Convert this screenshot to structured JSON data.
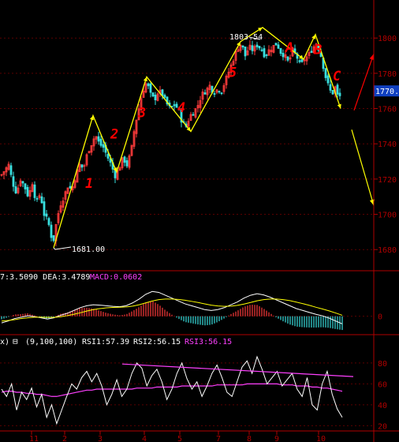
{
  "colors": {
    "background": "#000000",
    "axis": "#b00000",
    "grid": "#5a0000",
    "up": "#ff3b3b",
    "down": "#39e0e0",
    "white_line": "#ffffff",
    "yellow": "#ffff00",
    "magenta": "#ff40ff",
    "red_mark": "#ff0000",
    "price_tag": "#1040c0",
    "annotation_text": "#ffffff"
  },
  "header_macd": {
    "text_left": "7:3.5090 DEA:3.4789",
    "text_right": "MACD:0.0602"
  },
  "header_rsi": {
    "box_prefix": "x)",
    "minus_box": "⊟",
    "params": "(9,100,100)",
    "rsi1": "RSI1:57.39",
    "rsi2": "RSI2:56.15",
    "rsi3": "RSI3:56.15"
  },
  "price_axis": {
    "ticks": [
      "1800",
      "1780",
      "1760",
      "1740",
      "1720",
      "1700",
      "1680"
    ],
    "current_price_tag": "1770."
  },
  "macd_axis": {
    "ticks": [
      "0"
    ]
  },
  "rsi_axis": {
    "ticks": [
      "80",
      "60",
      "40",
      "20"
    ]
  },
  "x_axis": {
    "ticks": [
      "11",
      "2",
      "3",
      "4",
      "5",
      "7",
      "8",
      "9",
      "10"
    ]
  },
  "annotations": {
    "low_label": "1681.00",
    "high_label": "1803.54",
    "wave_labels": [
      "1",
      "2",
      "3",
      "4",
      "5",
      "A",
      "B",
      "C"
    ]
  },
  "chart_data": [
    {
      "type": "candlestick",
      "panel": "price",
      "title": "",
      "xlabel": "",
      "ylabel": "",
      "ylim": [
        1668,
        1818
      ],
      "x_ticks": [
        "11",
        "2",
        "3",
        "4",
        "5",
        "7",
        "8",
        "9",
        "10"
      ],
      "y_ticks": [
        1680,
        1700,
        1720,
        1740,
        1760,
        1780,
        1800
      ],
      "grid": true,
      "close_path": [
        [
          0,
          1722
        ],
        [
          5,
          1725
        ],
        [
          10,
          1728
        ],
        [
          15,
          1718
        ],
        [
          20,
          1712
        ],
        [
          25,
          1720
        ],
        [
          30,
          1716
        ],
        [
          35,
          1710
        ],
        [
          40,
          1718
        ],
        [
          45,
          1706
        ],
        [
          50,
          1712
        ],
        [
          55,
          1700
        ],
        [
          60,
          1696
        ],
        [
          63,
          1690
        ],
        [
          66,
          1683
        ],
        [
          70,
          1694
        ],
        [
          75,
          1705
        ],
        [
          80,
          1710
        ],
        [
          85,
          1716
        ],
        [
          90,
          1714
        ],
        [
          95,
          1722
        ],
        [
          100,
          1728
        ],
        [
          105,
          1726
        ],
        [
          110,
          1735
        ],
        [
          115,
          1740
        ],
        [
          120,
          1745
        ],
        [
          125,
          1740
        ],
        [
          130,
          1738
        ],
        [
          135,
          1733
        ],
        [
          140,
          1728
        ],
        [
          145,
          1722
        ],
        [
          150,
          1726
        ],
        [
          155,
          1732
        ],
        [
          160,
          1728
        ],
        [
          165,
          1735
        ],
        [
          170,
          1750
        ],
        [
          175,
          1760
        ],
        [
          180,
          1770
        ],
        [
          185,
          1775
        ],
        [
          190,
          1768
        ],
        [
          195,
          1765
        ],
        [
          200,
          1770
        ],
        [
          205,
          1768
        ],
        [
          210,
          1763
        ],
        [
          215,
          1760
        ],
        [
          220,
          1762
        ],
        [
          225,
          1760
        ],
        [
          230,
          1752
        ],
        [
          235,
          1750
        ],
        [
          240,
          1756
        ],
        [
          245,
          1758
        ],
        [
          250,
          1762
        ],
        [
          255,
          1768
        ],
        [
          260,
          1770
        ],
        [
          265,
          1773
        ],
        [
          270,
          1769
        ],
        [
          275,
          1771
        ],
        [
          280,
          1770
        ],
        [
          285,
          1776
        ],
        [
          290,
          1782
        ],
        [
          295,
          1788
        ],
        [
          300,
          1794
        ],
        [
          305,
          1797
        ],
        [
          310,
          1790
        ],
        [
          315,
          1795
        ],
        [
          320,
          1793
        ],
        [
          325,
          1796
        ],
        [
          330,
          1794
        ],
        [
          335,
          1790
        ],
        [
          340,
          1793
        ],
        [
          345,
          1795
        ],
        [
          350,
          1797
        ],
        [
          355,
          1792
        ],
        [
          360,
          1790
        ],
        [
          365,
          1786
        ],
        [
          370,
          1793
        ],
        [
          375,
          1790
        ],
        [
          380,
          1784
        ],
        [
          385,
          1788
        ],
        [
          390,
          1790
        ],
        [
          395,
          1794
        ],
        [
          400,
          1797
        ],
        [
          405,
          1792
        ],
        [
          408,
          1786
        ],
        [
          412,
          1778
        ],
        [
          416,
          1772
        ],
        [
          420,
          1768
        ],
        [
          424,
          1772
        ],
        [
          428,
          1766
        ],
        [
          432,
          1768
        ]
      ],
      "key_levels": {
        "low": 1681.0,
        "high": 1803.54,
        "last": 1770.0
      },
      "wave_points": [
        [
          68,
          1681
        ],
        [
          118,
          1756
        ],
        [
          148,
          1724
        ],
        [
          186,
          1778
        ],
        [
          242,
          1747
        ],
        [
          305,
          1798
        ],
        [
          333,
          1806
        ],
        [
          385,
          1788
        ],
        [
          400,
          1802
        ],
        [
          432,
          1760
        ]
      ],
      "wave_labels": [
        {
          "label": "1",
          "x": 108,
          "y": 1715
        },
        {
          "label": "2",
          "x": 140,
          "y": 1743
        },
        {
          "label": "3",
          "x": 175,
          "y": 1755
        },
        {
          "label": "4",
          "x": 225,
          "y": 1758
        },
        {
          "label": "5",
          "x": 290,
          "y": 1778
        },
        {
          "label": "A",
          "x": 362,
          "y": 1792
        },
        {
          "label": "B",
          "x": 398,
          "y": 1791
        },
        {
          "label": "C",
          "x": 422,
          "y": 1776
        }
      ],
      "projections": [
        {
          "color": "yellow",
          "from": [
            446,
            1748
          ],
          "to": [
            474,
            1705
          ]
        },
        {
          "color": "red",
          "from": [
            449,
            1759
          ],
          "to": [
            474,
            1791
          ]
        }
      ]
    },
    {
      "type": "bar",
      "panel": "macd",
      "title": "",
      "ylim": [
        -0.8,
        1.6
      ],
      "y_ticks": [
        0
      ],
      "series": [
        {
          "name": "DIFF",
          "values": [
            -0.35,
            -0.25,
            -0.12,
            -0.05,
            0.02,
            -0.02,
            -0.08,
            -0.15,
            -0.08,
            0.05,
            0.15,
            0.3,
            0.45,
            0.55,
            0.6,
            0.58,
            0.55,
            0.52,
            0.5,
            0.55,
            0.7,
            0.9,
            1.15,
            1.3,
            1.25,
            1.1,
            0.95,
            0.8,
            0.65,
            0.55,
            0.45,
            0.35,
            0.3,
            0.35,
            0.45,
            0.6,
            0.75,
            0.95,
            1.1,
            1.18,
            1.12,
            1.0,
            0.85,
            0.7,
            0.55,
            0.4,
            0.3,
            0.2,
            0.1,
            0.02,
            -0.1,
            -0.25,
            -0.4
          ]
        },
        {
          "name": "DEA",
          "values": [
            -0.25,
            -0.22,
            -0.18,
            -0.12,
            -0.08,
            -0.05,
            -0.05,
            -0.06,
            -0.06,
            -0.03,
            0.03,
            0.1,
            0.18,
            0.27,
            0.35,
            0.4,
            0.44,
            0.46,
            0.47,
            0.49,
            0.53,
            0.6,
            0.7,
            0.8,
            0.87,
            0.9,
            0.9,
            0.88,
            0.84,
            0.78,
            0.72,
            0.65,
            0.58,
            0.54,
            0.52,
            0.53,
            0.57,
            0.64,
            0.72,
            0.81,
            0.87,
            0.9,
            0.9,
            0.87,
            0.82,
            0.74,
            0.66,
            0.57,
            0.47,
            0.38,
            0.28,
            0.17,
            0.05
          ]
        }
      ]
    },
    {
      "type": "line",
      "panel": "rsi",
      "title": "",
      "ylim": [
        15,
        95
      ],
      "y_ticks": [
        20,
        40,
        60,
        80
      ],
      "series": [
        {
          "name": "RSI1",
          "values": [
            55,
            48,
            60,
            35,
            52,
            45,
            56,
            38,
            50,
            28,
            40,
            22,
            35,
            48,
            60,
            55,
            66,
            72,
            62,
            70,
            58,
            40,
            50,
            64,
            48,
            55,
            70,
            80,
            75,
            58,
            68,
            74,
            62,
            45,
            55,
            70,
            80,
            65,
            55,
            62,
            48,
            58,
            70,
            78,
            66,
            52,
            48,
            62,
            76,
            82,
            70,
            86,
            74,
            60,
            66,
            72,
            58,
            64,
            70,
            55,
            48,
            66,
            40,
            35,
            60,
            72,
            50,
            36,
            28
          ]
        },
        {
          "name": "RSI2",
          "values": [
            52,
            53,
            53,
            52,
            52,
            51,
            51,
            50,
            50,
            49,
            48,
            48,
            49,
            50,
            51,
            52,
            53,
            54,
            54,
            55,
            55,
            55,
            55,
            55,
            55,
            55,
            55,
            56,
            56,
            56,
            56,
            57,
            57,
            57,
            57,
            57,
            58,
            58,
            58,
            58,
            58,
            58,
            58,
            59,
            59,
            59,
            59,
            59,
            59,
            60,
            60,
            60,
            60,
            60,
            60,
            60,
            59,
            59,
            59,
            58,
            58,
            58,
            57,
            57,
            56,
            56,
            55,
            54,
            53
          ]
        }
      ],
      "trendline": {
        "from": [
          155,
          79
        ],
        "to": [
          448,
          67
        ]
      }
    }
  ]
}
